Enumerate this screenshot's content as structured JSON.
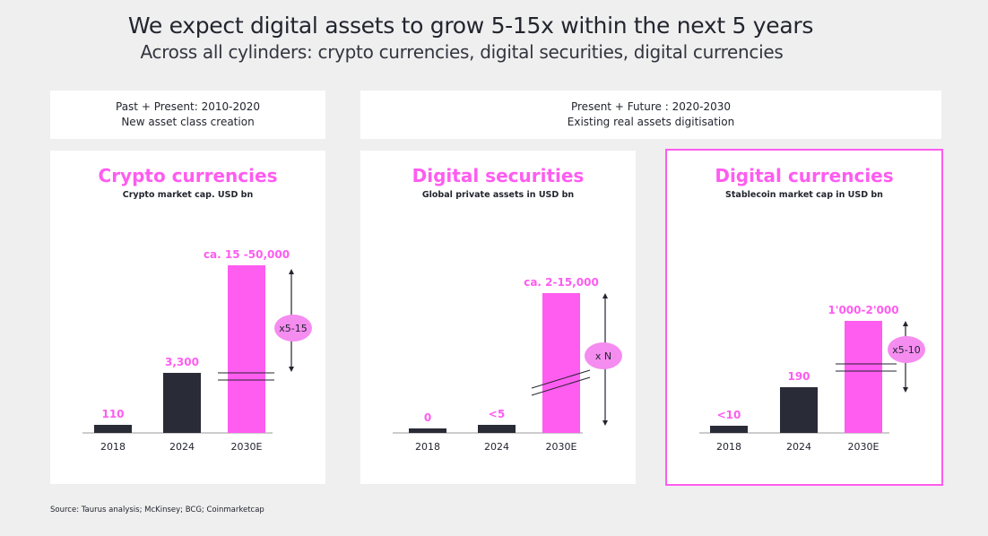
{
  "title": "We expect digital assets to grow 5-15x within the next 5 years",
  "subtitle": "Across all cylinders: crypto currencies, digital securities, digital currencies",
  "headers": [
    {
      "line1": "Past + Present: 2010-2020",
      "line2": "New asset class creation"
    },
    {
      "line1": "Present + Future : 2020-2030",
      "line2": "Existing real assets digitisation"
    }
  ],
  "colors": {
    "accent": "#ff5cf0",
    "bar_dark": "#292b37",
    "background": "#efefef"
  },
  "chart_data": [
    {
      "type": "bar",
      "title": "Crypto currencies",
      "subtitle": "Crypto market cap. USD bn",
      "categories": [
        "2018",
        "2024",
        "2030E"
      ],
      "values": [
        110,
        3300,
        [
          15000,
          50000
        ]
      ],
      "data_labels": [
        "110",
        "3,300",
        "ca. 15 -50,000"
      ],
      "multiplier": "x5-15",
      "axis_break": true,
      "highlighted": false
    },
    {
      "type": "bar",
      "title": "Digital securities",
      "subtitle": "Global private assets in USD bn",
      "categories": [
        "2018",
        "2024",
        "2030E"
      ],
      "values": [
        0,
        5,
        [
          2000,
          15000
        ]
      ],
      "data_labels": [
        "0",
        "<5",
        "ca. 2-15,000"
      ],
      "multiplier": "x N",
      "axis_break": true,
      "highlighted": false
    },
    {
      "type": "bar",
      "title": "Digital currencies",
      "subtitle": "Stablecoin market cap in USD bn",
      "categories": [
        "2018",
        "2024",
        "2030E"
      ],
      "values": [
        10,
        190,
        [
          1000,
          2000
        ]
      ],
      "data_labels": [
        "<10",
        "190",
        "1'000-2'000"
      ],
      "multiplier": "x5-10",
      "axis_break": true,
      "highlighted": true
    }
  ],
  "source": "Source: Taurus analysis; McKinsey; BCG; Coinmarketcap"
}
